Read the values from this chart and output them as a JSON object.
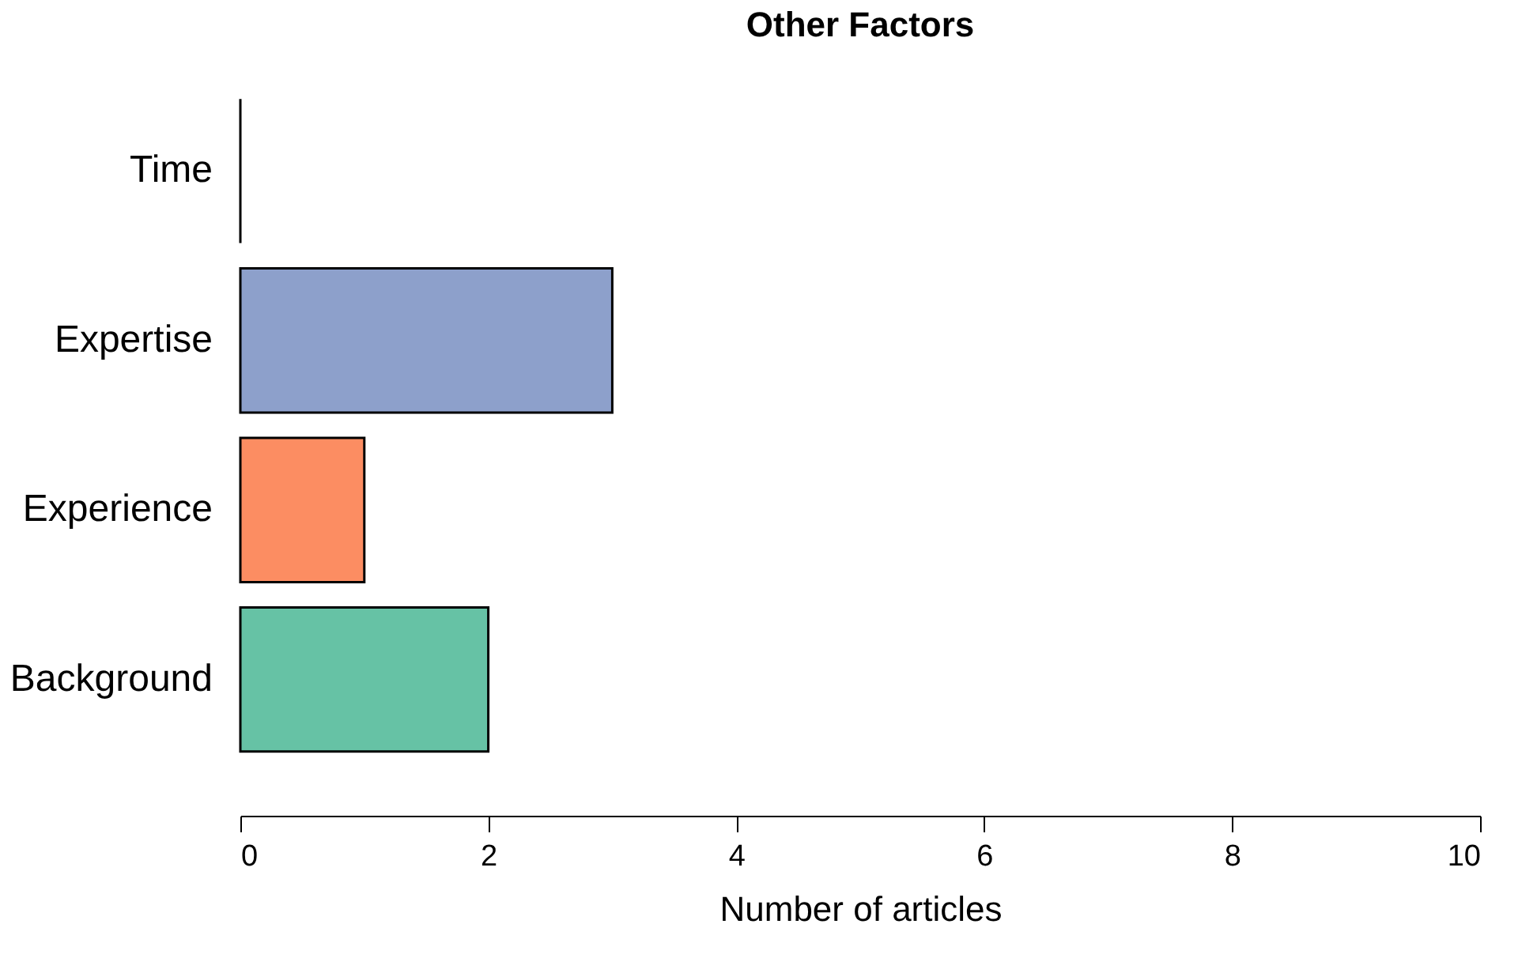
{
  "chart_data": {
    "type": "bar",
    "orientation": "horizontal",
    "title": "Other Factors",
    "xlabel": "Number of articles",
    "categories": [
      "Time",
      "Expertise",
      "Experience",
      "Background"
    ],
    "values": [
      0,
      3,
      1,
      2
    ],
    "colors": [
      "#000000",
      "#8da0cb",
      "#fc8d62",
      "#66c2a5"
    ],
    "xlim": [
      0,
      10
    ],
    "xticks": [
      0,
      2,
      4,
      6,
      8,
      10
    ],
    "grid": false
  }
}
